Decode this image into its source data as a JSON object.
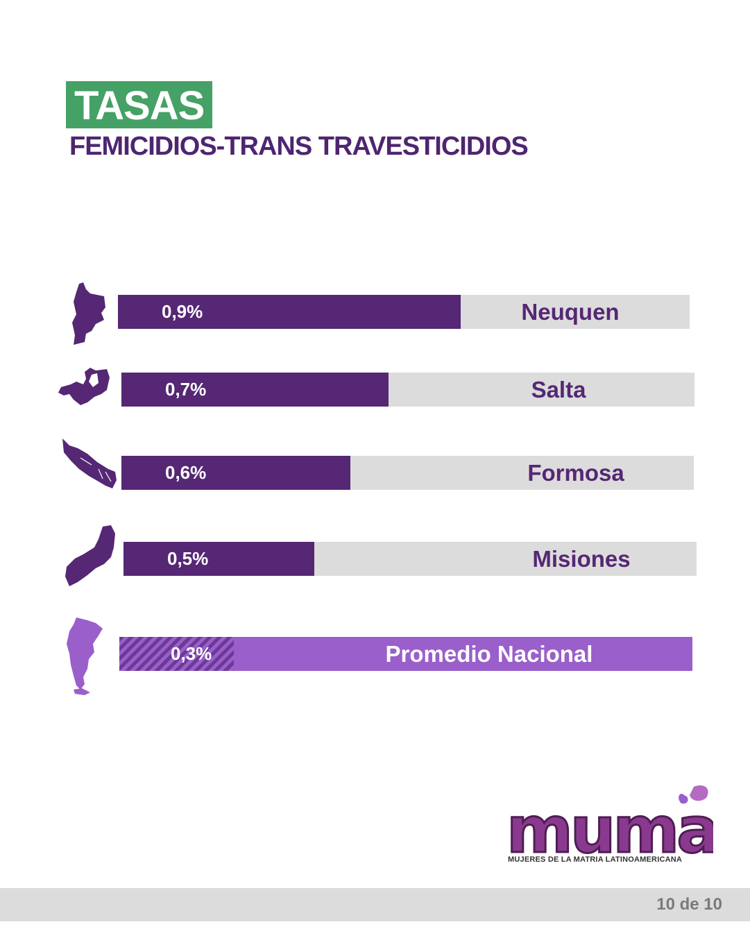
{
  "header": {
    "badge": "TASAS",
    "subtitle": "FEMICIDIOS-TRANS TRAVESTICIDIOS"
  },
  "colors": {
    "accent_green": "#45a165",
    "purple_dark": "#552774",
    "purple_light": "#9a5fcb",
    "track_gray": "#dcdcdc"
  },
  "chart_data": {
    "type": "bar",
    "orientation": "horizontal",
    "title": "",
    "xlabel": "",
    "ylabel": "",
    "unit": "%",
    "categories": [
      "Neuquen",
      "Salta",
      "Formosa",
      "Misiones",
      "Promedio Nacional"
    ],
    "values": [
      0.9,
      0.7,
      0.6,
      0.5,
      0.3
    ],
    "value_labels": [
      "0,9%",
      "0,7%",
      "0,6%",
      "0,5%",
      "0,3%"
    ],
    "icons": [
      "neuquen-map-icon",
      "salta-map-icon",
      "formosa-map-icon",
      "misiones-map-icon",
      "argentina-map-icon"
    ],
    "xlim": [
      0,
      1.5
    ],
    "grid": false
  },
  "logo": {
    "name": "mumalá",
    "tagline": "MUJERES DE LA MATRIA LATINOAMERICANA"
  },
  "footer": {
    "page": "10 de 10"
  }
}
